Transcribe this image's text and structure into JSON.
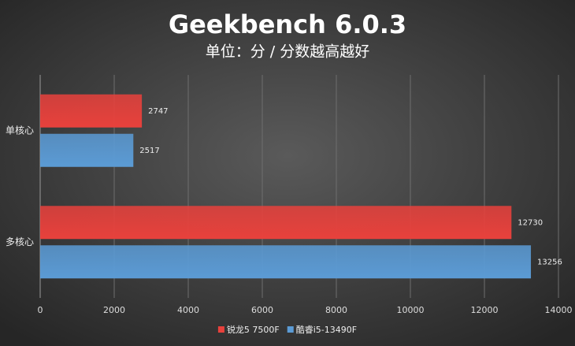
{
  "chart_data": {
    "type": "bar",
    "orientation": "horizontal",
    "title": "Geekbench 6.0.3",
    "subtitle": "单位：分 / 分数越高越好",
    "categories": [
      "单核心",
      "多核心"
    ],
    "series": [
      {
        "name": "锐龙5 7500F",
        "color": "#e8413c",
        "values": [
          2747,
          12730
        ]
      },
      {
        "name": "酷睿i5-13490F",
        "color": "#5b9bd5",
        "values": [
          2517,
          13256
        ]
      }
    ],
    "xlim": [
      0,
      14000
    ],
    "xticks": [
      0,
      2000,
      4000,
      6000,
      8000,
      10000,
      12000,
      14000
    ],
    "grid": true,
    "legend": "bottom"
  }
}
